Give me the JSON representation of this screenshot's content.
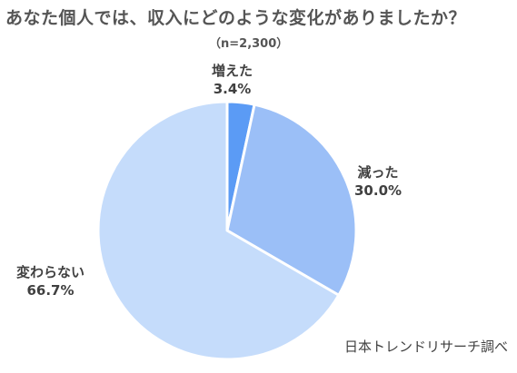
{
  "chart_data": {
    "type": "pie",
    "title": "あなた個人では、収入にどのような変化がありましたか？",
    "subtitle": "（n=2,300）",
    "slices": [
      {
        "label": "増えた",
        "value": 3.4,
        "display": "3.4%",
        "color": "#5b9bf5"
      },
      {
        "label": "減った",
        "value": 30.0,
        "display": "30.0%",
        "color": "#9bbff7"
      },
      {
        "label": "変わらない",
        "value": 66.7,
        "display": "66.7%",
        "color": "#c5dcfb"
      }
    ],
    "source": "日本トレンドリサーチ調べ"
  }
}
